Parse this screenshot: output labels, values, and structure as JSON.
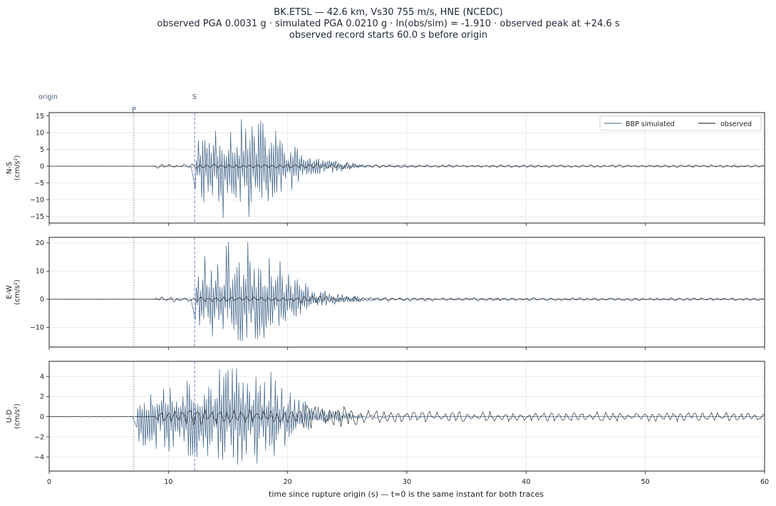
{
  "title_lines": [
    "BK.ETSL  —  42.6 km, Vs30 755 m/s, HNE (NCEDC)",
    "observed PGA 0.0031 g   ·   simulated PGA 0.0210 g   ·   ln(obs/sim) = -1.910   ·   observed peak at +24.6 s",
    "observed record starts 60.0 s before origin"
  ],
  "markers": {
    "origin": "origin",
    "p": "P",
    "s": "S"
  },
  "xlabel": "time since rupture origin (s)   —   t=0 is the same instant for both traces",
  "legend": {
    "sim": "BBP simulated",
    "obs": "observed",
    "placement": "top-right"
  },
  "colors": {
    "sim": "#3a5f85",
    "obs": "#111111",
    "p_line": "#777777",
    "s_line": "#7a7fd0",
    "grid": "#e6e6e6"
  },
  "chart_data": {
    "type": "line",
    "x_range": [
      0,
      60
    ],
    "x_ticks": [
      0,
      10,
      20,
      30,
      40,
      50,
      60
    ],
    "p_arrival": 7.1,
    "s_arrival": 12.2,
    "grid": true,
    "panels": [
      {
        "name": "N-S",
        "ylabel": [
          "N-S",
          "(cm/s²)"
        ],
        "ylim": [
          -17,
          16
        ],
        "y_ticks": [
          15,
          10,
          5,
          0,
          -5,
          -10,
          -15
        ],
        "sim_peak": 14.3,
        "sim_min": -15.6,
        "obs_peak": 1.6,
        "sim_start": 12.2,
        "obs_start": 9.0,
        "seed": 11
      },
      {
        "name": "E-W",
        "ylabel": [
          "E-W",
          "(cm/s²)"
        ],
        "ylim": [
          -17,
          22
        ],
        "y_ticks": [
          20,
          10,
          0,
          -10
        ],
        "sim_peak": 20.5,
        "sim_min": -15.5,
        "obs_peak": 2.3,
        "sim_start": 12.2,
        "obs_start": 9.0,
        "seed": 23
      },
      {
        "name": "U-D",
        "ylabel": [
          "U-D",
          "(cm/s²)"
        ],
        "ylim": [
          -5.4,
          5.5
        ],
        "y_ticks": [
          4,
          2,
          0,
          -2,
          -4
        ],
        "sim_peak": 5.1,
        "sim_min": -4.8,
        "obs_peak": 1.9,
        "sim_start": 7.1,
        "obs_start": 9.0,
        "seed": 37
      }
    ]
  }
}
